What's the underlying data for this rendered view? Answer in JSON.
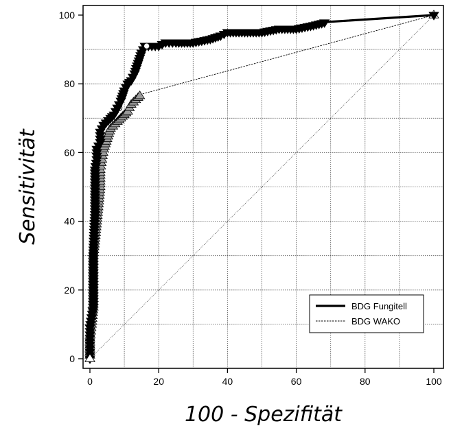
{
  "chart_data": {
    "type": "line",
    "title": "",
    "xlabel": "100 - Spezifität",
    "ylabel": "Sensitivität",
    "xlim": [
      0,
      100
    ],
    "ylim": [
      0,
      100
    ],
    "xticks": [
      0,
      20,
      40,
      60,
      80,
      100
    ],
    "yticks": [
      0,
      20,
      40,
      60,
      80,
      100
    ],
    "grid": true,
    "legend_position": "bottom-right",
    "diagonal_reference": true,
    "series": [
      {
        "name": "BDG Fungitell",
        "line_style": "solid",
        "marker": "triangle-down",
        "color": "#000000",
        "points": [
          [
            0,
            0
          ],
          [
            0,
            3
          ],
          [
            0,
            6
          ],
          [
            0,
            9
          ],
          [
            0.5,
            12
          ],
          [
            1,
            15
          ],
          [
            1,
            20
          ],
          [
            1,
            25
          ],
          [
            1,
            30
          ],
          [
            1.2,
            36
          ],
          [
            1.5,
            42
          ],
          [
            1.5,
            48
          ],
          [
            1.5,
            55
          ],
          [
            2,
            58
          ],
          [
            2,
            61
          ],
          [
            3,
            63
          ],
          [
            3,
            66
          ],
          [
            4,
            68
          ],
          [
            6,
            70
          ],
          [
            7,
            71
          ],
          [
            8,
            73
          ],
          [
            9,
            75
          ],
          [
            10,
            78
          ],
          [
            11,
            80
          ],
          [
            12,
            81
          ],
          [
            13,
            83
          ],
          [
            14,
            86
          ],
          [
            15,
            89
          ],
          [
            16,
            91
          ],
          [
            18,
            91
          ],
          [
            20,
            91
          ],
          [
            22,
            92
          ],
          [
            25,
            92
          ],
          [
            30,
            92
          ],
          [
            35,
            93
          ],
          [
            38,
            94
          ],
          [
            40,
            95
          ],
          [
            45,
            95
          ],
          [
            50,
            95
          ],
          [
            55,
            96
          ],
          [
            60,
            96
          ],
          [
            65,
            97
          ],
          [
            69,
            98
          ],
          [
            100,
            100
          ]
        ],
        "optimal_point": [
          16.5,
          91
        ]
      },
      {
        "name": "BDG WAKO",
        "line_style": "dashed",
        "marker": "triangle-up",
        "color": "#999999",
        "points": [
          [
            0,
            0
          ],
          [
            0,
            3
          ],
          [
            0,
            6
          ],
          [
            0.5,
            10
          ],
          [
            1,
            15
          ],
          [
            1,
            20
          ],
          [
            1,
            25
          ],
          [
            1,
            30
          ],
          [
            1.5,
            35
          ],
          [
            2,
            40
          ],
          [
            2.5,
            45
          ],
          [
            3,
            50
          ],
          [
            3,
            55
          ],
          [
            3.5,
            58
          ],
          [
            4,
            61
          ],
          [
            5,
            64
          ],
          [
            6,
            67
          ],
          [
            8,
            69
          ],
          [
            9,
            70
          ],
          [
            10,
            71
          ],
          [
            11,
            72
          ],
          [
            12,
            74
          ],
          [
            14,
            76
          ],
          [
            15,
            77
          ],
          [
            100,
            100
          ]
        ],
        "optimal_point": [
          8.5,
          73
        ]
      }
    ]
  }
}
